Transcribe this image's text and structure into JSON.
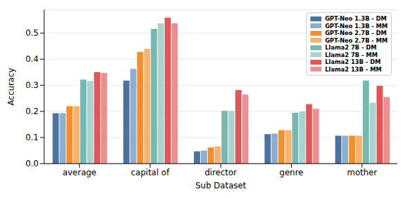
{
  "chart_data": {
    "type": "bar",
    "x_label": "Sub Dataset",
    "y_label": "Accuracy",
    "categories": [
      "average",
      "capital of",
      "director",
      "genre",
      "mother"
    ],
    "series": [
      {
        "name": "GPT-Neo 1.3B - DM",
        "color": "#4c72a0",
        "values": [
          0.193,
          0.318,
          0.047,
          0.113,
          0.107
        ]
      },
      {
        "name": "GPT-Neo 1.3B - MM",
        "color": "#8eaed0",
        "values": [
          0.193,
          0.363,
          0.05,
          0.115,
          0.107
        ]
      },
      {
        "name": "GPT-Neo 2.7B - DM",
        "color": "#f28e2b",
        "values": [
          0.22,
          0.428,
          0.062,
          0.128,
          0.107
        ]
      },
      {
        "name": "GPT-Neo 2.7B - MM",
        "color": "#f7b26d",
        "values": [
          0.22,
          0.44,
          0.066,
          0.128,
          0.107
        ]
      },
      {
        "name": "Llama2 7B - DM",
        "color": "#76b7b2",
        "values": [
          0.322,
          0.516,
          0.202,
          0.195,
          0.318
        ]
      },
      {
        "name": "Llama2 7B - MM",
        "color": "#a9d3cf",
        "values": [
          0.317,
          0.537,
          0.202,
          0.2,
          0.234
        ]
      },
      {
        "name": "Llama2 13B - DM",
        "color": "#e15759",
        "values": [
          0.35,
          0.559,
          0.282,
          0.228,
          0.298
        ]
      },
      {
        "name": "Llama2 13B - MM",
        "color": "#ec8f90",
        "values": [
          0.347,
          0.537,
          0.265,
          0.21,
          0.255
        ]
      }
    ],
    "ylim": [
      0,
      0.59
    ],
    "yticks": [
      {
        "value": 0,
        "label": "0.0"
      },
      0.1,
      0.2,
      0.3,
      0.4,
      0.5
    ],
    "grid": true,
    "legend": "upper right"
  }
}
